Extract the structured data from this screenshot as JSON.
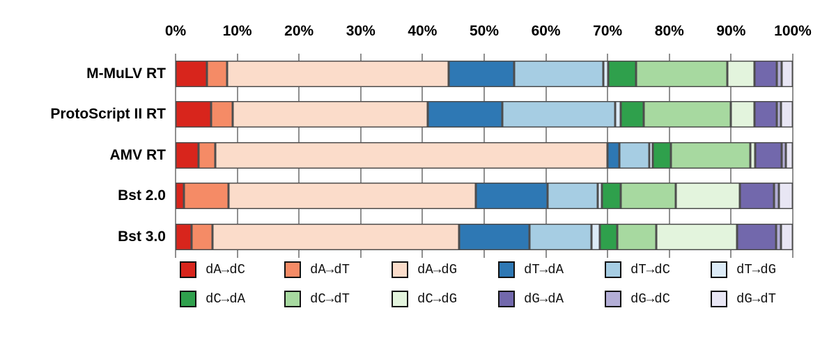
{
  "chart_data": {
    "type": "bar",
    "variant": "horizontal_stacked_100_percent",
    "title": "",
    "categories": [
      "M-MuLV RT",
      "ProtoScript II RT",
      "AMV RT",
      "Bst 2.0",
      "Bst 3.0"
    ],
    "x_tick_labels": [
      "0%",
      "10%",
      "20%",
      "30%",
      "40%",
      "50%",
      "60%",
      "70%",
      "80%",
      "90%",
      "100%"
    ],
    "xlim": [
      0,
      100
    ],
    "grid": true,
    "legend_position": "bottom",
    "legend_rows": 2,
    "series": [
      {
        "name": "dA→dC",
        "color": "#d8251c",
        "values": [
          5.1,
          5.7,
          3.7,
          1.4,
          2.6
        ]
      },
      {
        "name": "dA→dT",
        "color": "#f58b66",
        "values": [
          3.3,
          3.6,
          2.7,
          7.2,
          3.4
        ]
      },
      {
        "name": "dA→dG",
        "color": "#fbdcca",
        "values": [
          35.8,
          31.6,
          63.6,
          40.1,
          39.9
        ]
      },
      {
        "name": "dT→dA",
        "color": "#2e78b4",
        "values": [
          10.6,
          12.0,
          1.9,
          11.6,
          11.4
        ]
      },
      {
        "name": "dT→dC",
        "color": "#a6cde3",
        "values": [
          14.5,
          18.3,
          4.9,
          8.1,
          10.1
        ]
      },
      {
        "name": "dT→dG",
        "color": "#dcebf7",
        "values": [
          0.8,
          0.9,
          0.5,
          0.7,
          1.3
        ]
      },
      {
        "name": "dC→dA",
        "color": "#2fa04c",
        "values": [
          4.5,
          3.8,
          2.9,
          3.0,
          2.9
        ]
      },
      {
        "name": "dC→dT",
        "color": "#a7d9a0",
        "values": [
          14.8,
          14.1,
          12.9,
          8.9,
          6.3
        ]
      },
      {
        "name": "dC→dG",
        "color": "#e3f4dd",
        "values": [
          4.4,
          3.8,
          0.8,
          10.4,
          13.1
        ]
      },
      {
        "name": "dG→dA",
        "color": "#7268ac",
        "values": [
          3.6,
          3.6,
          4.3,
          5.6,
          6.3
        ]
      },
      {
        "name": "dG→dC",
        "color": "#b3aed6",
        "values": [
          0.8,
          0.7,
          0.7,
          0.8,
          0.8
        ]
      },
      {
        "name": "dG→dT",
        "color": "#e8e6f4",
        "values": [
          1.8,
          1.9,
          1.1,
          2.2,
          1.9
        ]
      }
    ],
    "style": {
      "gridline_color": "#8f8f8f",
      "segment_border_color": "#4d4d4d",
      "label_color": "#000000",
      "background": "#ffffff"
    }
  }
}
